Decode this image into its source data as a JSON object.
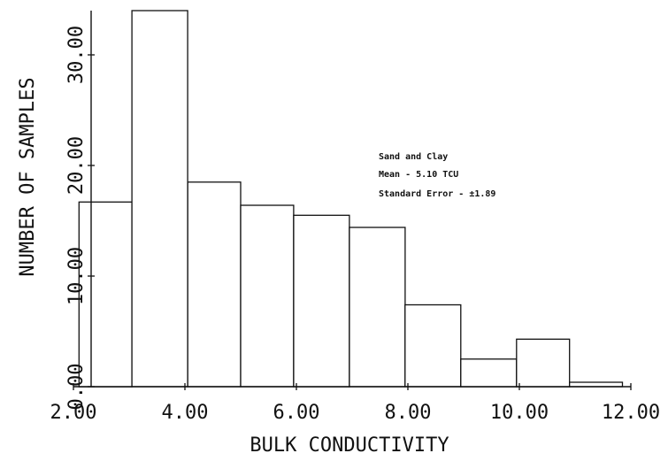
{
  "chart_data": {
    "type": "bar",
    "subtype": "histogram",
    "xlabel": "BULK CONDUCTIVITY",
    "ylabel": "NUMBER OF SAMPLES",
    "xlim": [
      2.0,
      12.0
    ],
    "ylim": [
      0,
      34
    ],
    "x_ticks": [
      2.0,
      4.0,
      6.0,
      8.0,
      10.0,
      12.0
    ],
    "x_tick_labels": [
      "2.00",
      "4.00",
      "6.00",
      "8.00",
      "10.00",
      "12.00"
    ],
    "y_ticks": [
      0,
      10,
      20,
      30
    ],
    "y_tick_labels": [
      "0.00",
      "10.00",
      "20.00",
      "30.00"
    ],
    "bins": [
      {
        "x0": 2.1,
        "x1": 3.05,
        "value": 16.7
      },
      {
        "x0": 3.05,
        "x1": 4.05,
        "value": 34.0
      },
      {
        "x0": 4.05,
        "x1": 5.0,
        "value": 18.5
      },
      {
        "x0": 5.0,
        "x1": 5.95,
        "value": 16.4
      },
      {
        "x0": 5.95,
        "x1": 6.95,
        "value": 15.5
      },
      {
        "x0": 6.95,
        "x1": 7.95,
        "value": 14.4
      },
      {
        "x0": 7.95,
        "x1": 8.95,
        "value": 7.4
      },
      {
        "x0": 8.95,
        "x1": 9.95,
        "value": 2.5
      },
      {
        "x0": 9.95,
        "x1": 10.9,
        "value": 4.3
      },
      {
        "x0": 10.9,
        "x1": 11.85,
        "value": 0.4
      }
    ],
    "grid": false,
    "annotation": {
      "lines": [
        "Sand and Clay",
        "Mean - 5.10 TCU",
        "Standard Error - ±1.89"
      ]
    },
    "bar_stroke": "#111111",
    "bar_fill": "#ffffff"
  }
}
